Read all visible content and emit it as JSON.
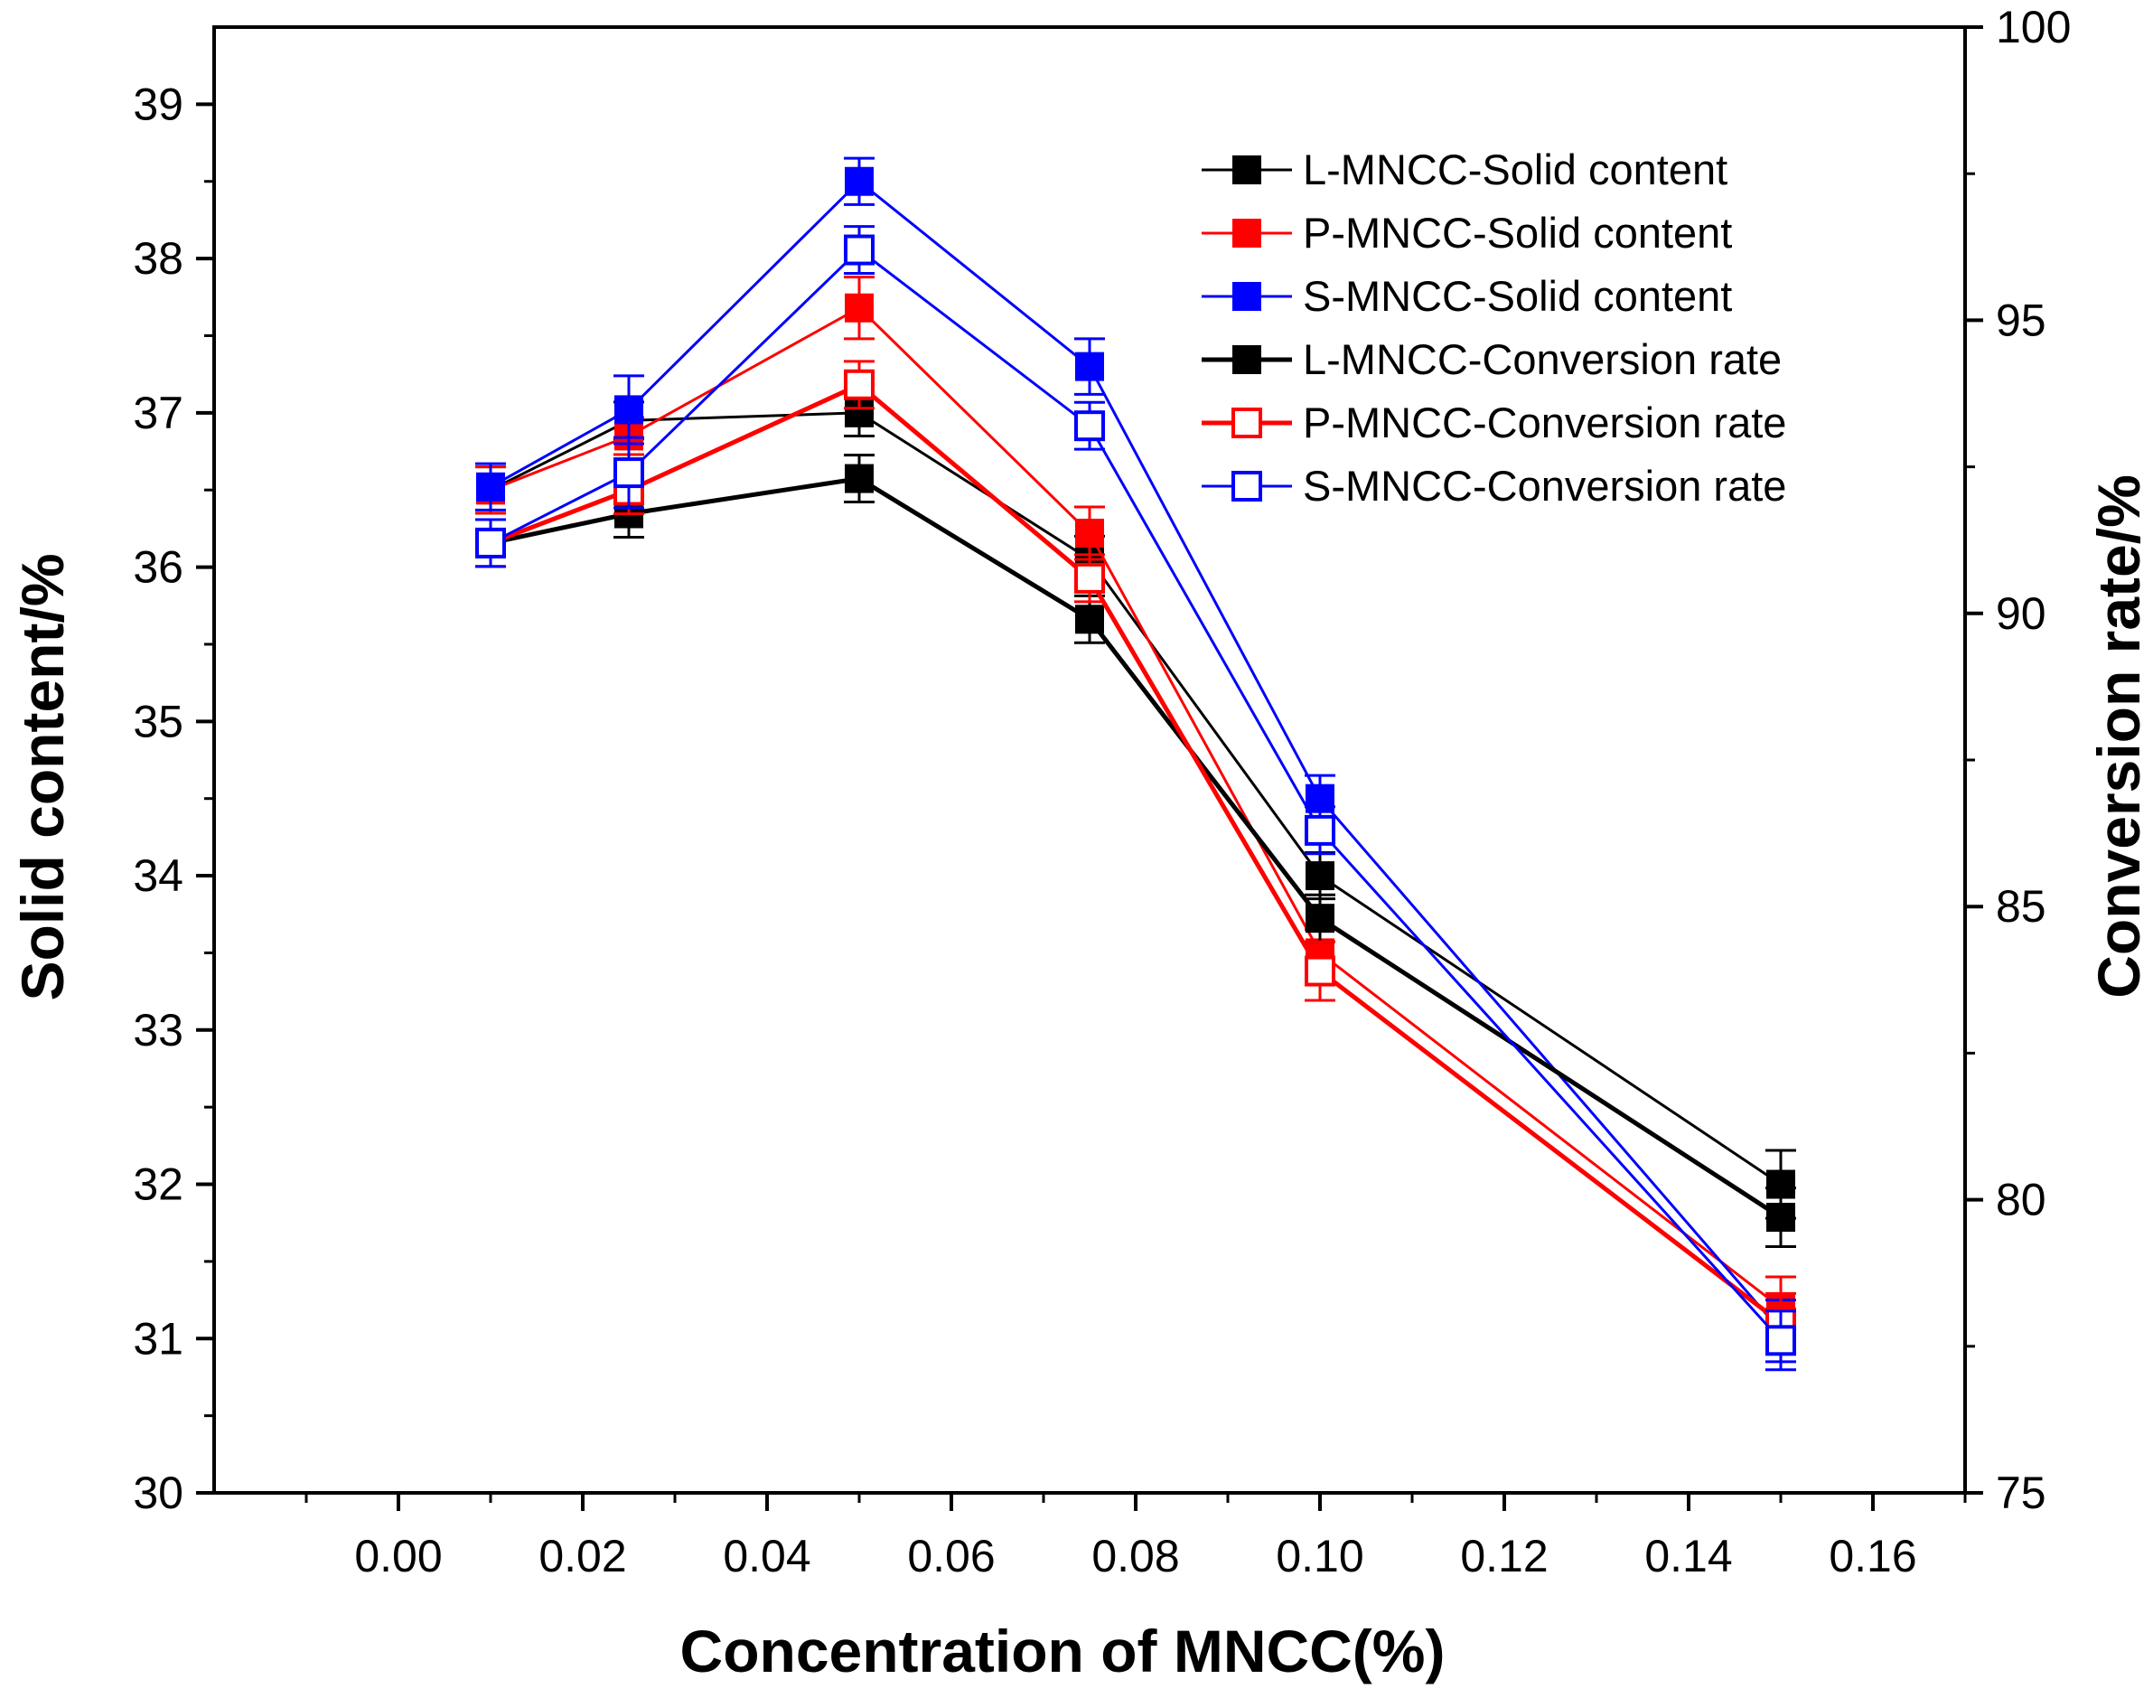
{
  "chart_data": {
    "type": "line",
    "xlabel": "Concentration of MNCC(%)",
    "ylabel": "Solid content/%",
    "y2label": "Conversion rate/%",
    "xlim": [
      -0.02,
      0.17
    ],
    "ylim": [
      30,
      39.5
    ],
    "y2lim": [
      75,
      100
    ],
    "x_ticks": [
      0.0,
      0.02,
      0.04,
      0.06,
      0.08,
      0.1,
      0.12,
      0.14,
      0.16
    ],
    "x_tick_labels": [
      "0.00",
      "0.02",
      "0.04",
      "0.06",
      "0.08",
      "0.10",
      "0.12",
      "0.14",
      "0.16"
    ],
    "y_ticks": [
      30,
      31,
      32,
      33,
      34,
      35,
      36,
      37,
      38,
      39
    ],
    "y_tick_labels": [
      "30",
      "31",
      "32",
      "33",
      "34",
      "35",
      "36",
      "37",
      "38",
      "39"
    ],
    "y2_ticks": [
      75,
      80,
      85,
      90,
      95,
      100
    ],
    "y2_tick_labels": [
      "75",
      "80",
      "85",
      "90",
      "95",
      "100"
    ],
    "legend_position": "top-right",
    "x": [
      0.01,
      0.025,
      0.05,
      0.075,
      0.1,
      0.15
    ],
    "series": [
      {
        "name": "L-MNCC-Solid content",
        "axis": "left",
        "color": "#000000",
        "marker": "filled",
        "line_width": "thin",
        "values": [
          36.5,
          36.95,
          37.0,
          36.05,
          34.0,
          32.0
        ],
        "errors": [
          0.15,
          0.12,
          0.15,
          0.15,
          0.15,
          0.22
        ]
      },
      {
        "name": "P-MNCC-Solid content",
        "axis": "left",
        "color": "#ff0000",
        "marker": "filled",
        "line_width": "thin",
        "values": [
          36.5,
          36.85,
          37.68,
          36.22,
          33.5,
          31.2
        ],
        "errors": [
          0.15,
          0.12,
          0.2,
          0.17,
          0.15,
          0.2
        ]
      },
      {
        "name": "S-MNCC-Solid content",
        "axis": "left",
        "color": "#0000ff",
        "marker": "filled",
        "line_width": "thin",
        "values": [
          36.52,
          37.02,
          38.5,
          37.3,
          34.5,
          31.05
        ],
        "errors": [
          0.15,
          0.22,
          0.15,
          0.18,
          0.15,
          0.2
        ]
      },
      {
        "name": "L-MNCC-Conversion rate",
        "axis": "right",
        "color": "#000000",
        "marker": "filled",
        "line_width": "thick",
        "values": [
          91.2,
          91.7,
          92.3,
          89.9,
          84.8,
          79.7
        ],
        "errors": [
          0.4,
          0.4,
          0.4,
          0.4,
          0.4,
          0.5
        ]
      },
      {
        "name": "P-MNCC-Conversion rate",
        "axis": "right",
        "color": "#ff0000",
        "marker": "hollow",
        "line_width": "thick",
        "values": [
          91.2,
          92.1,
          93.9,
          90.6,
          83.9,
          77.9
        ],
        "errors": [
          0.4,
          0.4,
          0.4,
          0.4,
          0.5,
          0.5
        ]
      },
      {
        "name": "S-MNCC-Conversion rate",
        "axis": "right",
        "color": "#0000ff",
        "marker": "hollow",
        "line_width": "thin",
        "values": [
          91.2,
          92.4,
          96.2,
          93.2,
          86.3,
          77.6
        ],
        "errors": [
          0.4,
          0.6,
          0.4,
          0.4,
          0.4,
          0.5
        ]
      }
    ]
  }
}
